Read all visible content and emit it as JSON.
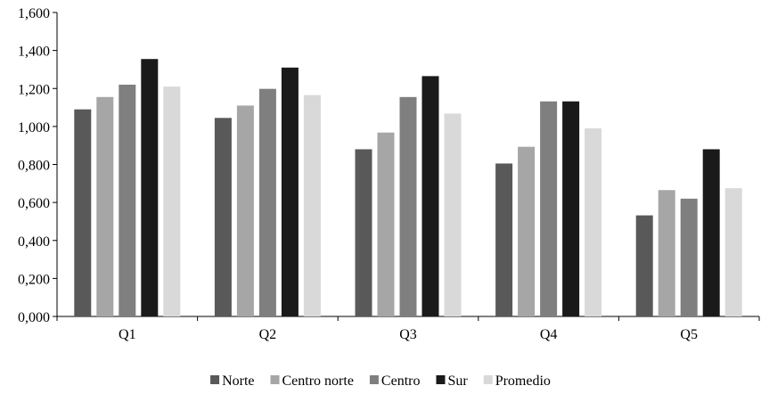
{
  "chart_data": {
    "type": "bar",
    "categories": [
      "Q1",
      "Q2",
      "Q3",
      "Q4",
      "Q5"
    ],
    "series": [
      {
        "name": "Norte",
        "color": "#595959",
        "values": [
          1.09,
          1.045,
          0.88,
          0.805,
          0.532
        ]
      },
      {
        "name": "Centro norte",
        "color": "#a6a6a6",
        "values": [
          1.155,
          1.11,
          0.968,
          0.893,
          0.665
        ]
      },
      {
        "name": "Centro",
        "color": "#7f7f7f",
        "values": [
          1.22,
          1.198,
          1.155,
          1.132,
          0.62
        ]
      },
      {
        "name": "Sur",
        "color": "#1a1a1a",
        "values": [
          1.355,
          1.31,
          1.265,
          1.132,
          0.88
        ]
      },
      {
        "name": "Promedio",
        "color": "#d9d9d9",
        "values": [
          1.21,
          1.165,
          1.068,
          0.99,
          0.675
        ]
      }
    ],
    "yticks": [
      "0,000",
      "0,200",
      "0,400",
      "0,600",
      "0,800",
      "1,000",
      "1,200",
      "1,400",
      "1,600"
    ],
    "ylim": [
      0,
      1.6
    ],
    "title": "",
    "xlabel": "",
    "ylabel": "",
    "grid": false,
    "legend_position": "bottom"
  }
}
